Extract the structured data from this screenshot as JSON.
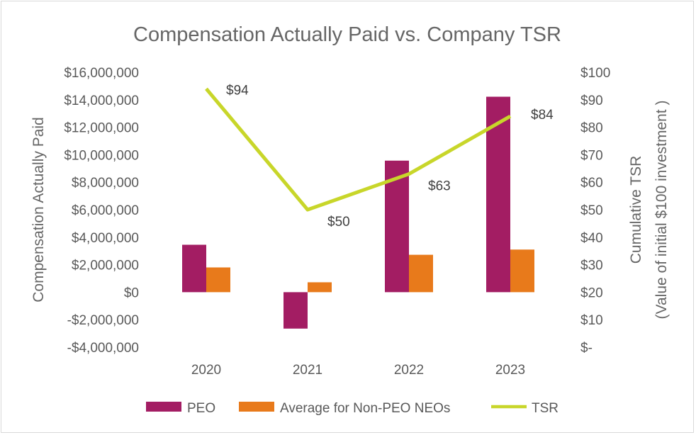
{
  "chart_data": {
    "type": "bar",
    "title": "Compensation Actually Paid vs. Company TSR",
    "categories": [
      "2020",
      "2021",
      "2022",
      "2023"
    ],
    "series": [
      {
        "name": "PEO",
        "type": "bar",
        "axis": "left",
        "color": "#A31D63",
        "values": [
          3450000,
          -2650000,
          9570000,
          14220000
        ]
      },
      {
        "name": "Average for Non-PEO NEOs",
        "type": "bar",
        "axis": "left",
        "color": "#E87A1B",
        "values": [
          1800000,
          720000,
          2720000,
          3100000
        ]
      },
      {
        "name": "TSR",
        "type": "line",
        "axis": "right",
        "color": "#C8D62A",
        "values": [
          94,
          50,
          63,
          84
        ],
        "labels": [
          "$94",
          "$50",
          "$63",
          "$84"
        ]
      }
    ],
    "y_left": {
      "label": "Compensation Actually Paid",
      "range": [
        -4000000,
        16000000
      ],
      "ticks": [
        16000000,
        14000000,
        12000000,
        10000000,
        8000000,
        6000000,
        4000000,
        2000000,
        0,
        -2000000,
        -4000000
      ],
      "tick_labels": [
        "$16,000,000",
        "$14,000,000",
        "$12,000,000",
        "$10,000,000",
        "$8,000,000",
        "$6,000,000",
        "$4,000,000",
        "$2,000,000",
        "$0",
        "-$2,000,000",
        "-$4,000,000"
      ]
    },
    "y_right": {
      "label_line1": "Cumulative TSR",
      "label_line2": "(Value of initial $100 investment )",
      "range": [
        0,
        100
      ],
      "ticks": [
        100,
        90,
        80,
        70,
        60,
        50,
        40,
        30,
        20,
        10,
        0
      ],
      "tick_labels": [
        "$100",
        "$90",
        "$80",
        "$70",
        "$60",
        "$50",
        "$40",
        "$30",
        "$20",
        "$10",
        "$-"
      ]
    },
    "grid": false,
    "legend": {
      "position": "bottom",
      "entries": [
        "PEO",
        "Average for Non-PEO NEOs",
        "TSR"
      ]
    }
  }
}
